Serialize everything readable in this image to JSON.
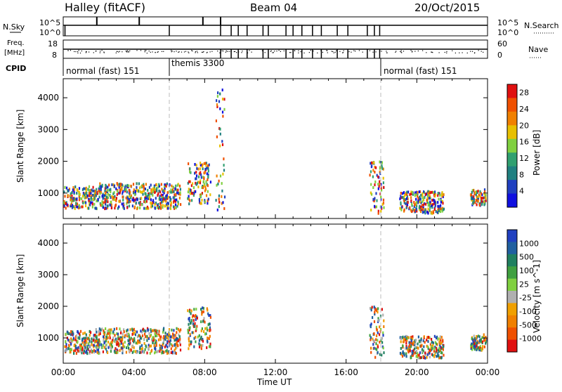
{
  "header": {
    "station": "Halley (fitACF)",
    "beam": "Beam 04",
    "date": "20/Oct/2015"
  },
  "top_panels": {
    "nsky": {
      "label": "N.Sky",
      "tick_top": "10^5",
      "tick_bottom": "10^0"
    },
    "nsearch": {
      "label": "N.Search",
      "tick_top": "10^5",
      "tick_bottom": "10^0"
    },
    "freq": {
      "label_line1": "Freq.",
      "label_line2": "[MHz]",
      "tick_top": "18",
      "tick_bottom": "8"
    },
    "nave": {
      "label": "Nave",
      "tick_top": "60",
      "tick_bottom": "0"
    },
    "cpid": {
      "label": "CPID",
      "segments": [
        {
          "text": "normal (fast) 151",
          "start_hour": 0
        },
        {
          "text": "themis 3300",
          "start_hour": 6
        },
        {
          "text": "normal (fast) 151",
          "start_hour": 18
        }
      ]
    }
  },
  "colors": {
    "power_scale": [
      "#1010e0",
      "#2040c0",
      "#208080",
      "#30a070",
      "#80d040",
      "#e8c000",
      "#f08000",
      "#f05000",
      "#e01010"
    ],
    "velocity_scale": [
      "#2040c0",
      "#2060a0",
      "#208060",
      "#40a040",
      "#80d040",
      "#b0b0b0",
      "#f0a000",
      "#f08000",
      "#f05000",
      "#e01010"
    ]
  },
  "chart_data": [
    {
      "type": "heatmap",
      "title": "",
      "xlabel": "",
      "ylabel": "Slant Range [km]",
      "xlim": [
        "00:00",
        "00:00"
      ],
      "ylim": [
        200,
        4600
      ],
      "yticks": [
        "1000",
        "2000",
        "3000",
        "4000"
      ],
      "colorbar": {
        "label": "Power [dB]",
        "ticks": [
          "4",
          "8",
          "12",
          "16",
          "20",
          "24",
          "28"
        ],
        "range": [
          0,
          30
        ]
      },
      "regions": [
        {
          "x_hours": [
            0,
            1.8
          ],
          "range_km": [
            550,
            1250
          ],
          "value": "10-24"
        },
        {
          "x_hours": [
            1.8,
            6.6
          ],
          "range_km": [
            550,
            1350
          ],
          "value": "8-24"
        },
        {
          "x_hours": [
            7.0,
            8.3
          ],
          "range_km": [
            700,
            2000
          ],
          "value": "8-20"
        },
        {
          "x_hours": [
            8.6,
            9.1
          ],
          "range_km": [
            500,
            4350
          ],
          "value": "4-24"
        },
        {
          "x_hours": [
            17.3,
            18.1
          ],
          "range_km": [
            400,
            2050
          ],
          "value": "4-20"
        },
        {
          "x_hours": [
            19.0,
            21.5
          ],
          "range_km": [
            400,
            1100
          ],
          "value": "4-16"
        },
        {
          "x_hours": [
            23.0,
            23.9
          ],
          "range_km": [
            650,
            1150
          ],
          "value": "8-24"
        }
      ]
    },
    {
      "type": "heatmap",
      "title": "",
      "xlabel": "Time UT",
      "ylabel": "Slant Range [km]",
      "xlim": [
        "00:00",
        "00:00"
      ],
      "xticks": [
        "00:00",
        "04:00",
        "08:00",
        "12:00",
        "16:00",
        "20:00",
        "00:00"
      ],
      "ylim": [
        200,
        4600
      ],
      "yticks": [
        "1000",
        "2000",
        "3000",
        "4000"
      ],
      "colorbar": {
        "label": "Velocity [m s^-1]",
        "ticks": [
          "1000",
          "500",
          "100",
          "25",
          "-25",
          "-100",
          "-500",
          "-1000"
        ]
      },
      "regions": [
        {
          "x_hours": [
            0,
            1.8
          ],
          "range_km": [
            550,
            1250
          ],
          "value": "-100 to -500"
        },
        {
          "x_hours": [
            1.8,
            6.6
          ],
          "range_km": [
            550,
            1350
          ],
          "value": "25 to 500"
        },
        {
          "x_hours": [
            7.0,
            8.3
          ],
          "range_km": [
            700,
            2000
          ],
          "value": "-100 to -500"
        },
        {
          "x_hours": [
            17.3,
            18.1
          ],
          "range_km": [
            400,
            2050
          ],
          "value": "-100 to -500"
        },
        {
          "x_hours": [
            19.0,
            21.5
          ],
          "range_km": [
            400,
            1100
          ],
          "value": "-25 to -100"
        },
        {
          "x_hours": [
            23.0,
            23.9
          ],
          "range_km": [
            650,
            1150
          ],
          "value": "-500 to -1000"
        }
      ]
    }
  ]
}
